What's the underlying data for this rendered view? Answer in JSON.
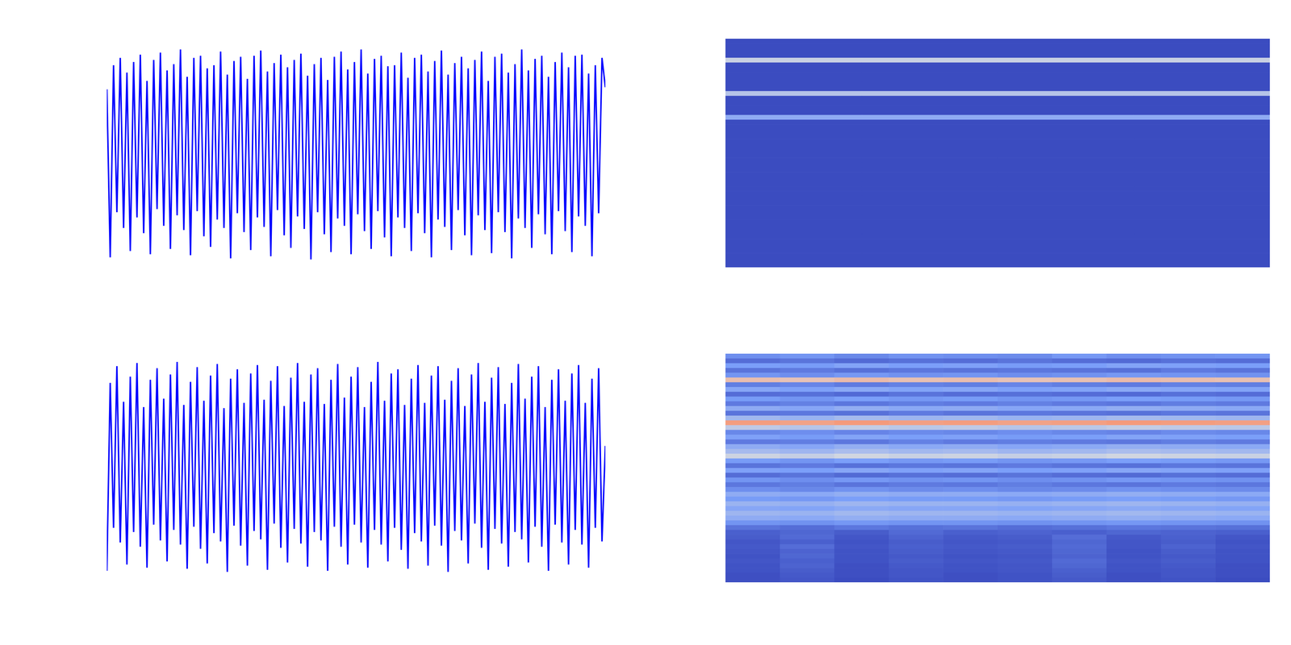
{
  "chart_data": [
    {
      "type": "line",
      "color": "#0000ff",
      "tick_labels": false,
      "xlim": [
        0,
        149
      ],
      "ylim": [
        -1,
        1
      ],
      "values": [
        0.62,
        -0.98,
        0.85,
        -0.55,
        0.92,
        -0.7,
        0.78,
        -0.92,
        0.88,
        -0.6,
        0.95,
        -0.75,
        0.7,
        -0.95,
        0.9,
        -0.52,
        0.97,
        -0.68,
        0.8,
        -0.9,
        0.86,
        -0.58,
        1.0,
        -0.72,
        0.74,
        -0.96,
        0.92,
        -0.54,
        0.94,
        -0.78,
        0.82,
        -0.88,
        0.85,
        -0.62,
        0.98,
        -0.7,
        0.76,
        -0.99,
        0.89,
        -0.56,
        0.93,
        -0.74,
        0.72,
        -0.91,
        0.94,
        -0.6,
        0.99,
        -0.69,
        0.79,
        -0.97,
        0.87,
        -0.53,
        0.95,
        -0.77,
        0.83,
        -0.89,
        0.9,
        -0.59,
        0.96,
        -0.71,
        0.75,
        -1.0,
        0.86,
        -0.55,
        0.92,
        -0.76,
        0.71,
        -0.93,
        0.93,
        -0.61,
        0.98,
        -0.68,
        0.81,
        -0.95,
        0.88,
        -0.57,
        1.0,
        -0.73,
        0.77,
        -0.9,
        0.91,
        -0.54,
        0.94,
        -0.79,
        0.84,
        -0.97,
        0.85,
        -0.6,
        0.97,
        -0.7,
        0.73,
        -0.92,
        0.92,
        -0.56,
        0.95,
        -0.75,
        0.79,
        -0.98,
        0.89,
        -0.62,
        0.99,
        -0.69,
        0.76,
        -0.91,
        0.87,
        -0.53,
        0.93,
        -0.77,
        0.82,
        -0.96,
        0.9,
        -0.58,
        0.98,
        -0.72,
        0.7,
        -0.94,
        0.93,
        -0.55,
        0.96,
        -0.74,
        0.78,
        -0.99,
        0.86,
        -0.61,
        1.0,
        -0.7,
        0.8,
        -0.89,
        0.91,
        -0.57,
        0.94,
        -0.76,
        0.74,
        -0.95,
        0.88,
        -0.54,
        0.97,
        -0.73,
        0.83,
        -0.93,
        0.94,
        -0.59,
        0.95,
        -0.68,
        0.77,
        -0.97,
        0.85,
        -0.56,
        0.92,
        0.64
      ]
    },
    {
      "type": "heatmap",
      "tick_labels": false,
      "color_range": [
        0,
        1
      ],
      "cells": [
        [
          0,
          0,
          0,
          0
        ],
        [
          0,
          0,
          0,
          0
        ],
        [
          0,
          0,
          0,
          0
        ],
        [
          0,
          0,
          0,
          0
        ],
        [
          0.45,
          0.45,
          0.45,
          0.45
        ],
        [
          0,
          0,
          0,
          0
        ],
        [
          0,
          0,
          0,
          0
        ],
        [
          0,
          0,
          0,
          0
        ],
        [
          0,
          0,
          0,
          0
        ],
        [
          0,
          0,
          0,
          0
        ],
        [
          0,
          0,
          0,
          0
        ],
        [
          0.4,
          0.4,
          0.4,
          0.4
        ],
        [
          0,
          0,
          0,
          0
        ],
        [
          0,
          0,
          0,
          0
        ],
        [
          0,
          0,
          0,
          0
        ],
        [
          0,
          0,
          0,
          0
        ],
        [
          0.3,
          0.3,
          0.3,
          0.3
        ],
        [
          0,
          0,
          0,
          0
        ],
        [
          0,
          0,
          0,
          0
        ],
        [
          0,
          0,
          0,
          0
        ],
        [
          0,
          0,
          0,
          0
        ],
        [
          0,
          0,
          0,
          0
        ],
        [
          0,
          0,
          0,
          0
        ],
        [
          0,
          0,
          0,
          0
        ],
        [
          0,
          0,
          0,
          0
        ],
        [
          0,
          0,
          0,
          0
        ],
        [
          0,
          0,
          0,
          0
        ],
        [
          0,
          0,
          0,
          0
        ],
        [
          0,
          0,
          0,
          0
        ],
        [
          0,
          0,
          0,
          0
        ],
        [
          0,
          0,
          0,
          0
        ],
        [
          0,
          0,
          0,
          0
        ],
        [
          0,
          0,
          0,
          0
        ],
        [
          0,
          0,
          0,
          0
        ],
        [
          0,
          0,
          0,
          0
        ],
        [
          0,
          0,
          0,
          0
        ],
        [
          0,
          0,
          0,
          0
        ],
        [
          0,
          0,
          0,
          0
        ],
        [
          0,
          0,
          0,
          0
        ],
        [
          0,
          0,
          0,
          0
        ],
        [
          0,
          0,
          0,
          0
        ],
        [
          0,
          0,
          0,
          0
        ],
        [
          0,
          0,
          0,
          0
        ],
        [
          0,
          0,
          0,
          0
        ],
        [
          0,
          0,
          0,
          0
        ],
        [
          0,
          0,
          0,
          0
        ],
        [
          0,
          0,
          0,
          0
        ],
        [
          0,
          0,
          0,
          0
        ]
      ]
    },
    {
      "type": "line",
      "color": "#0000ff",
      "tick_labels": false,
      "xlim": [
        0,
        149
      ],
      "ylim": [
        -1,
        1
      ],
      "values": [
        -0.99,
        0.8,
        -0.58,
        0.96,
        -0.72,
        0.62,
        -0.93,
        0.86,
        -0.62,
        0.99,
        -0.76,
        0.57,
        -0.96,
        0.83,
        -0.55,
        0.94,
        -0.7,
        0.65,
        -0.9,
        0.88,
        -0.6,
        1.0,
        -0.74,
        0.59,
        -0.97,
        0.81,
        -0.57,
        0.95,
        -0.78,
        0.63,
        -0.92,
        0.87,
        -0.63,
        0.98,
        -0.71,
        0.56,
        -1.0,
        0.84,
        -0.56,
        0.93,
        -0.75,
        0.61,
        -0.94,
        0.89,
        -0.61,
        0.97,
        -0.69,
        0.64,
        -0.98,
        0.82,
        -0.54,
        0.96,
        -0.77,
        0.58,
        -0.91,
        0.85,
        -0.59,
        0.99,
        -0.73,
        0.62,
        -0.95,
        0.88,
        -0.62,
        0.94,
        -0.7,
        0.6,
        -0.99,
        0.83,
        -0.57,
        0.98,
        -0.76,
        0.66,
        -0.93,
        0.86,
        -0.55,
        0.95,
        -0.72,
        0.57,
        -0.96,
        0.81,
        -0.6,
        1.0,
        -0.74,
        0.63,
        -0.9,
        0.89,
        -0.58,
        0.93,
        -0.79,
        0.59,
        -0.97,
        0.84,
        -0.63,
        0.97,
        -0.71,
        0.61,
        -0.94,
        0.87,
        -0.56,
        0.96,
        -0.75,
        0.64,
        -1.0,
        0.82,
        -0.61,
        0.94,
        -0.7,
        0.58,
        -0.92,
        0.88,
        -0.54,
        0.99,
        -0.77,
        0.62,
        -0.98,
        0.85,
        -0.59,
        0.95,
        -0.73,
        0.6,
        -0.95,
        0.8,
        -0.62,
        0.98,
        -0.69,
        0.65,
        -0.91,
        0.86,
        -0.57,
        0.96,
        -0.76,
        0.57,
        -0.99,
        0.83,
        -0.55,
        0.93,
        -0.72,
        0.63,
        -0.93,
        0.89,
        -0.6,
        0.97,
        -0.74,
        0.61,
        -0.96,
        0.84,
        -0.58,
        0.94,
        -0.71,
        0.2
      ]
    },
    {
      "type": "heatmap",
      "tick_labels": false,
      "color_range": [
        0,
        1
      ],
      "cells": [
        [
          0.2,
          0.22,
          0.18,
          0.21,
          0.2,
          0.19,
          0.23,
          0.2,
          0.21,
          0.22
        ],
        [
          0.1,
          0.12,
          0.09,
          0.11,
          0.1,
          0.12,
          0.1,
          0.09,
          0.11,
          0.1
        ],
        [
          0.25,
          0.24,
          0.27,
          0.25,
          0.26,
          0.24,
          0.25,
          0.27,
          0.26,
          0.25
        ],
        [
          0.12,
          0.14,
          0.11,
          0.13,
          0.12,
          0.13,
          0.12,
          0.11,
          0.14,
          0.12
        ],
        [
          0.22,
          0.2,
          0.23,
          0.21,
          0.22,
          0.2,
          0.21,
          0.23,
          0.22,
          0.21
        ],
        [
          0.62,
          0.6,
          0.63,
          0.61,
          0.62,
          0.6,
          0.61,
          0.63,
          0.62,
          0.61
        ],
        [
          0.15,
          0.17,
          0.14,
          0.16,
          0.15,
          0.17,
          0.15,
          0.14,
          0.16,
          0.15
        ],
        [
          0.28,
          0.26,
          0.29,
          0.27,
          0.28,
          0.26,
          0.27,
          0.29,
          0.28,
          0.27
        ],
        [
          0.1,
          0.11,
          0.09,
          0.12,
          0.1,
          0.11,
          0.1,
          0.09,
          0.11,
          0.1
        ],
        [
          0.24,
          0.22,
          0.25,
          0.23,
          0.24,
          0.22,
          0.23,
          0.25,
          0.24,
          0.23
        ],
        [
          0.14,
          0.16,
          0.13,
          0.15,
          0.14,
          0.16,
          0.14,
          0.13,
          0.15,
          0.14
        ],
        [
          0.3,
          0.28,
          0.31,
          0.29,
          0.3,
          0.28,
          0.29,
          0.31,
          0.3,
          0.29
        ],
        [
          0.12,
          0.13,
          0.11,
          0.14,
          0.12,
          0.13,
          0.12,
          0.11,
          0.13,
          0.12
        ],
        [
          0.35,
          0.33,
          0.36,
          0.34,
          0.35,
          0.33,
          0.34,
          0.36,
          0.35,
          0.34
        ],
        [
          0.74,
          0.72,
          0.75,
          0.73,
          0.74,
          0.72,
          0.73,
          0.75,
          0.74,
          0.73
        ],
        [
          0.42,
          0.4,
          0.43,
          0.41,
          0.42,
          0.4,
          0.41,
          0.43,
          0.42,
          0.41
        ],
        [
          0.18,
          0.2,
          0.17,
          0.19,
          0.18,
          0.2,
          0.18,
          0.17,
          0.19,
          0.18
        ],
        [
          0.26,
          0.24,
          0.27,
          0.25,
          0.26,
          0.24,
          0.25,
          0.27,
          0.26,
          0.25
        ],
        [
          0.14,
          0.15,
          0.13,
          0.16,
          0.14,
          0.15,
          0.14,
          0.13,
          0.15,
          0.14
        ],
        [
          0.3,
          0.28,
          0.31,
          0.29,
          0.3,
          0.28,
          0.29,
          0.31,
          0.3,
          0.29
        ],
        [
          0.36,
          0.34,
          0.37,
          0.35,
          0.36,
          0.34,
          0.35,
          0.37,
          0.36,
          0.35
        ],
        [
          0.46,
          0.44,
          0.47,
          0.45,
          0.46,
          0.44,
          0.45,
          0.47,
          0.46,
          0.45
        ],
        [
          0.24,
          0.22,
          0.25,
          0.23,
          0.24,
          0.22,
          0.23,
          0.25,
          0.24,
          0.23
        ],
        [
          0.12,
          0.14,
          0.11,
          0.13,
          0.12,
          0.14,
          0.12,
          0.11,
          0.13,
          0.12
        ],
        [
          0.26,
          0.25,
          0.28,
          0.26,
          0.27,
          0.25,
          0.26,
          0.28,
          0.27,
          0.26
        ],
        [
          0.1,
          0.12,
          0.09,
          0.11,
          0.1,
          0.12,
          0.1,
          0.09,
          0.11,
          0.1
        ],
        [
          0.22,
          0.2,
          0.23,
          0.21,
          0.22,
          0.2,
          0.21,
          0.23,
          0.22,
          0.21
        ],
        [
          0.13,
          0.15,
          0.12,
          0.14,
          0.13,
          0.15,
          0.13,
          0.12,
          0.14,
          0.13
        ],
        [
          0.2,
          0.18,
          0.21,
          0.19,
          0.2,
          0.18,
          0.19,
          0.21,
          0.2,
          0.19
        ],
        [
          0.3,
          0.29,
          0.31,
          0.3,
          0.3,
          0.29,
          0.3,
          0.31,
          0.3,
          0.29
        ],
        [
          0.24,
          0.23,
          0.25,
          0.24,
          0.24,
          0.23,
          0.24,
          0.25,
          0.24,
          0.23
        ],
        [
          0.33,
          0.32,
          0.34,
          0.33,
          0.33,
          0.32,
          0.33,
          0.34,
          0.33,
          0.32
        ],
        [
          0.28,
          0.27,
          0.29,
          0.28,
          0.28,
          0.27,
          0.28,
          0.29,
          0.28,
          0.27
        ],
        [
          0.34,
          0.33,
          0.35,
          0.34,
          0.34,
          0.33,
          0.34,
          0.35,
          0.34,
          0.33
        ],
        [
          0.3,
          0.29,
          0.31,
          0.3,
          0.3,
          0.29,
          0.3,
          0.31,
          0.3,
          0.29
        ],
        [
          0.22,
          0.21,
          0.23,
          0.22,
          0.22,
          0.21,
          0.22,
          0.23,
          0.22,
          0.21
        ],
        [
          0.12,
          0.1,
          0.13,
          0.11,
          0.12,
          0.1,
          0.11,
          0.13,
          0.12,
          0.11
        ],
        [
          0.06,
          0.08,
          0.05,
          0.09,
          0.06,
          0.07,
          0.06,
          0.08,
          0.07,
          0.06
        ],
        [
          0.05,
          0.09,
          0.03,
          0.07,
          0.04,
          0.05,
          0.1,
          0.04,
          0.06,
          0.03
        ],
        [
          0.03,
          0.06,
          0.02,
          0.05,
          0.03,
          0.04,
          0.08,
          0.03,
          0.05,
          0.02
        ],
        [
          0.04,
          0.1,
          0.03,
          0.06,
          0.04,
          0.05,
          0.09,
          0.03,
          0.07,
          0.03
        ],
        [
          0.03,
          0.07,
          0.02,
          0.05,
          0.03,
          0.04,
          0.08,
          0.02,
          0.05,
          0.02
        ],
        [
          0.02,
          0.08,
          0.02,
          0.04,
          0.02,
          0.03,
          0.07,
          0.02,
          0.04,
          0.02
        ],
        [
          0.03,
          0.06,
          0.02,
          0.05,
          0.03,
          0.04,
          0.09,
          0.03,
          0.05,
          0.02
        ],
        [
          0.02,
          0.07,
          0.01,
          0.04,
          0.02,
          0.03,
          0.08,
          0.02,
          0.04,
          0.01
        ],
        [
          0.02,
          0.05,
          0.01,
          0.03,
          0.02,
          0.03,
          0.06,
          0.02,
          0.03,
          0.01
        ],
        [
          0.01,
          0.04,
          0.01,
          0.03,
          0.01,
          0.02,
          0.05,
          0.01,
          0.03,
          0.01
        ],
        [
          0.01,
          0.03,
          0.0,
          0.02,
          0.01,
          0.02,
          0.04,
          0.01,
          0.02,
          0.0
        ]
      ]
    }
  ]
}
